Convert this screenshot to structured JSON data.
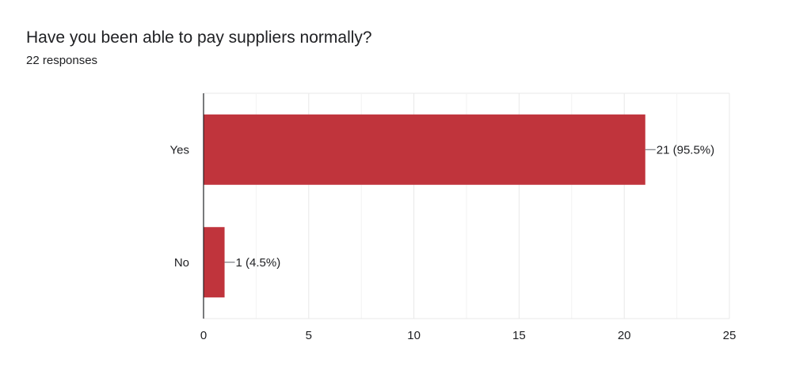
{
  "question": {
    "title": "Have you been able to pay suppliers normally?",
    "responses": "22 responses"
  },
  "chart_data": {
    "type": "bar",
    "orientation": "horizontal",
    "title": "Have you been able to pay suppliers normally?",
    "categories": [
      "Yes",
      "No"
    ],
    "values": [
      21,
      1
    ],
    "data_labels": [
      "21 (95.5%)",
      "1 (4.5%)"
    ],
    "xlim": [
      0,
      25
    ],
    "xticks": [
      0,
      5,
      10,
      15,
      20,
      25
    ],
    "grid": true,
    "legend": "none",
    "bar_color": "#c0343c",
    "grid_color": "#e8e8e8",
    "axis_color": "#202124"
  }
}
